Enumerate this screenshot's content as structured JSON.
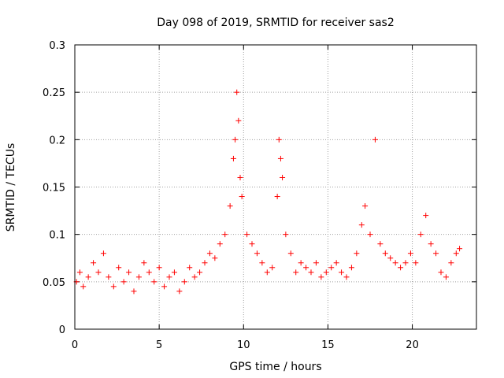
{
  "chart_data": {
    "type": "scatter",
    "title": "Day 098 of 2019, SRMTID for receiver sas2",
    "xlabel": "GPS time / hours",
    "ylabel": "SRMTID / TECUs",
    "xlim": [
      0,
      23.8
    ],
    "ylim": [
      0,
      0.3
    ],
    "grid": true,
    "marker": "+",
    "series": [
      {
        "name": "SRMTID",
        "color": "#ff0000",
        "x": [
          0.1,
          0.3,
          0.5,
          0.8,
          1.1,
          1.4,
          1.7,
          2.0,
          2.3,
          2.6,
          2.9,
          3.2,
          3.5,
          3.8,
          4.1,
          4.4,
          4.7,
          5.0,
          5.3,
          5.6,
          5.9,
          6.2,
          6.5,
          6.8,
          7.1,
          7.4,
          7.7,
          8.0,
          8.3,
          8.6,
          8.9,
          9.2,
          9.4,
          9.5,
          9.6,
          9.7,
          9.8,
          9.9,
          10.2,
          10.5,
          10.8,
          11.1,
          11.4,
          11.7,
          12.0,
          12.1,
          12.2,
          12.3,
          12.5,
          12.8,
          13.1,
          13.4,
          13.7,
          14.0,
          14.3,
          14.6,
          14.9,
          15.2,
          15.5,
          15.8,
          16.1,
          16.4,
          16.7,
          17.0,
          17.2,
          17.5,
          17.8,
          18.1,
          18.4,
          18.7,
          19.0,
          19.3,
          19.6,
          19.9,
          20.2,
          20.5,
          20.8,
          21.1,
          21.4,
          21.7,
          22.0,
          22.3,
          22.6,
          22.8
        ],
        "y": [
          0.05,
          0.06,
          0.045,
          0.055,
          0.07,
          0.06,
          0.08,
          0.055,
          0.045,
          0.065,
          0.05,
          0.06,
          0.04,
          0.055,
          0.07,
          0.06,
          0.05,
          0.065,
          0.045,
          0.055,
          0.06,
          0.04,
          0.05,
          0.065,
          0.055,
          0.06,
          0.07,
          0.08,
          0.075,
          0.09,
          0.1,
          0.13,
          0.18,
          0.2,
          0.25,
          0.22,
          0.16,
          0.14,
          0.1,
          0.09,
          0.08,
          0.07,
          0.06,
          0.065,
          0.14,
          0.2,
          0.18,
          0.16,
          0.1,
          0.08,
          0.06,
          0.07,
          0.065,
          0.06,
          0.07,
          0.055,
          0.06,
          0.065,
          0.07,
          0.06,
          0.055,
          0.065,
          0.08,
          0.11,
          0.13,
          0.1,
          0.2,
          0.09,
          0.08,
          0.075,
          0.07,
          0.065,
          0.07,
          0.08,
          0.07,
          0.1,
          0.12,
          0.09,
          0.08,
          0.06,
          0.055,
          0.07,
          0.08,
          0.085
        ]
      }
    ],
    "xticks": [
      0,
      5,
      10,
      15,
      20
    ],
    "yticks": [
      0,
      0.05,
      0.1,
      0.15,
      0.2,
      0.25,
      0.3
    ],
    "xtick_labels": [
      "0",
      "5",
      "10",
      "15",
      "20"
    ],
    "ytick_labels": [
      "0",
      "0.05",
      "0.1",
      "0.15",
      "0.2",
      "0.25",
      "0.3"
    ]
  }
}
